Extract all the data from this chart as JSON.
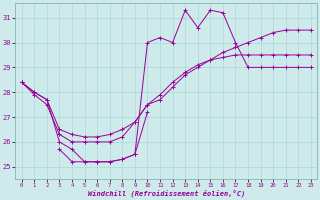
{
  "xlabel": "Windchill (Refroidissement éolien,°C)",
  "bg_color": "#ceeaea",
  "line_color": "#990099",
  "grid_color": "#aad8d8",
  "xlim": [
    -0.5,
    23.5
  ],
  "ylim": [
    24.5,
    31.6
  ],
  "yticks": [
    25,
    26,
    27,
    28,
    29,
    30,
    31
  ],
  "xticks": [
    0,
    1,
    2,
    3,
    4,
    5,
    6,
    7,
    8,
    9,
    10,
    11,
    12,
    13,
    14,
    15,
    16,
    17,
    18,
    19,
    20,
    21,
    22,
    23
  ],
  "series": [
    {
      "x": [
        0,
        1,
        2,
        3,
        4,
        5,
        6,
        7,
        8,
        9,
        10,
        11,
        12,
        13,
        14,
        15,
        16,
        17,
        18,
        19,
        20,
        21,
        22,
        23
      ],
      "y": [
        28.4,
        28.0,
        27.7,
        26.0,
        25.7,
        25.2,
        25.2,
        25.2,
        25.3,
        25.5,
        30.0,
        30.2,
        30.0,
        31.3,
        30.6,
        31.3,
        31.2,
        30.0,
        29.0,
        29.0,
        29.0,
        29.0,
        29.0,
        29.0
      ],
      "marker": true
    },
    {
      "x": [
        0,
        1,
        2,
        3,
        4,
        5,
        6,
        7,
        8,
        9,
        10,
        11,
        12,
        13,
        14,
        15,
        16,
        17,
        18,
        19,
        20,
        21,
        22,
        23
      ],
      "y": [
        28.4,
        27.9,
        27.5,
        26.3,
        26.0,
        26.0,
        26.0,
        26.0,
        26.2,
        26.8,
        27.5,
        27.7,
        28.2,
        28.7,
        29.0,
        29.3,
        29.6,
        29.8,
        30.0,
        30.2,
        30.4,
        30.5,
        30.5,
        30.5
      ],
      "marker": true
    },
    {
      "x": [
        0,
        1,
        2,
        3,
        4,
        5,
        6,
        7,
        8,
        9,
        10,
        11,
        12,
        13,
        14,
        15,
        16,
        17,
        18,
        19,
        20,
        21,
        22,
        23
      ],
      "y": [
        28.4,
        28.0,
        27.7,
        26.5,
        26.3,
        26.2,
        26.2,
        26.3,
        26.5,
        26.8,
        27.5,
        27.9,
        28.4,
        28.8,
        29.1,
        29.3,
        29.4,
        29.5,
        29.5,
        29.5,
        29.5,
        29.5,
        29.5,
        29.5
      ],
      "marker": true
    },
    {
      "x": [
        3,
        4,
        5,
        6,
        7,
        8,
        9,
        10
      ],
      "y": [
        25.7,
        25.2,
        25.2,
        25.2,
        25.2,
        25.3,
        25.5,
        27.2
      ],
      "marker": true
    }
  ]
}
